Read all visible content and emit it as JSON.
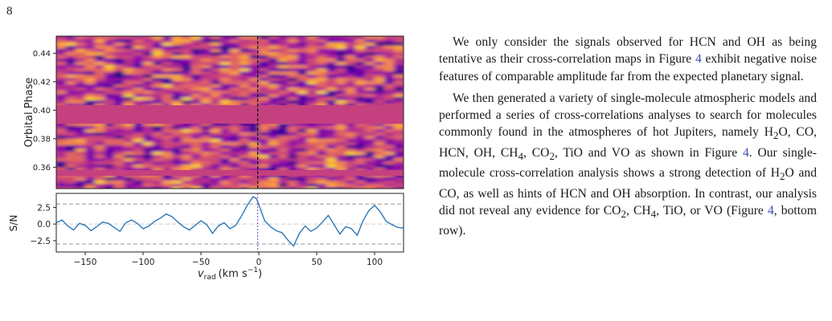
{
  "page": {
    "number": "8"
  },
  "figure": {
    "top_panel": {
      "ylabel": "Orbital Phase",
      "yticks": [
        "0.44",
        "0.42",
        "0.40",
        "0.38",
        "0.36"
      ],
      "ylim": [
        0.345,
        0.452
      ],
      "masked_band": [
        0.3905,
        0.4035
      ],
      "planet_marker_vrad": -1
    },
    "bottom_panel": {
      "ylabel": "S/N",
      "yticks": [
        "2.5",
        "0.0",
        "−2.5"
      ],
      "xticks": [
        "−150",
        "−100",
        "−50",
        "0",
        "50",
        "100"
      ],
      "xlabel_main": "v",
      "xlabel_sub": "rad",
      "xlabel_unit": "(km s",
      "xlabel_exp": "−1",
      "xlabel_close": ")",
      "reference_lines": [
        3,
        -3
      ],
      "line_color": "#2f78b5"
    },
    "chart_data": {
      "type": "line",
      "xlim": [
        -175,
        125
      ],
      "ylim": [
        -4.2,
        4.6
      ],
      "x": [
        -175,
        -170,
        -165,
        -160,
        -155,
        -150,
        -145,
        -140,
        -135,
        -130,
        -125,
        -120,
        -115,
        -110,
        -105,
        -100,
        -95,
        -90,
        -85,
        -80,
        -75,
        -70,
        -65,
        -60,
        -55,
        -50,
        -45,
        -40,
        -35,
        -30,
        -25,
        -20,
        -15,
        -10,
        -5,
        -2,
        0,
        5,
        10,
        15,
        20,
        25,
        30,
        35,
        40,
        45,
        50,
        55,
        60,
        65,
        70,
        75,
        80,
        85,
        90,
        95,
        100,
        105,
        110,
        115,
        120,
        125
      ],
      "y": [
        0.2,
        0.6,
        -0.3,
        -0.9,
        0.1,
        -0.2,
        -1.0,
        -0.4,
        0.3,
        0.1,
        -0.5,
        -1.1,
        0.2,
        0.6,
        0.1,
        -0.7,
        -0.3,
        0.4,
        0.9,
        1.5,
        1.1,
        0.3,
        -0.4,
        -0.9,
        -0.2,
        0.5,
        -0.1,
        -1.4,
        -0.3,
        0.2,
        -0.7,
        -0.2,
        1.2,
        2.8,
        4.1,
        3.8,
        2.9,
        0.5,
        -0.4,
        -1.0,
        -1.3,
        -2.4,
        -3.3,
        -1.4,
        -0.3,
        -1.1,
        -0.6,
        0.3,
        1.3,
        -0.1,
        -1.5,
        -0.4,
        -0.7,
        -1.7,
        0.5,
        2.0,
        2.8,
        1.8,
        0.4,
        -0.1,
        -0.5,
        -0.6
      ]
    }
  },
  "text": {
    "p1_a": "We only consider the signals observed for HCN and OH as being tentative as their cross-correlation maps in Figure ",
    "p1_ref": "4",
    "p1_b": " exhibit negative noise features of comparable amplitude far from the expected planetary signal.",
    "p2_a": "We then generated a variety of single-molecule atmospheric models and performed a series of cross-correlations analyses to search for molecules commonly found in the atmospheres of hot Jupiters, namely H",
    "p2_b": "O, CO, HCN, OH, CH",
    "p2_c": ", CO",
    "p2_d": ", TiO and VO as shown in Figure ",
    "p2_ref": "4",
    "p2_e": ". Our single-molecule cross-correlation analysis shows a strong detection of H",
    "p2_f": "O and CO, as well as hints of HCN and OH absorption. In contrast, our analysis did not reveal any evidence for CO",
    "p2_g": ", CH",
    "p2_h": ", TiO, or VO (Figure ",
    "p2_ref2": "4",
    "p2_i": ", bottom row).",
    "sub2": "2",
    "sub4": "4"
  }
}
